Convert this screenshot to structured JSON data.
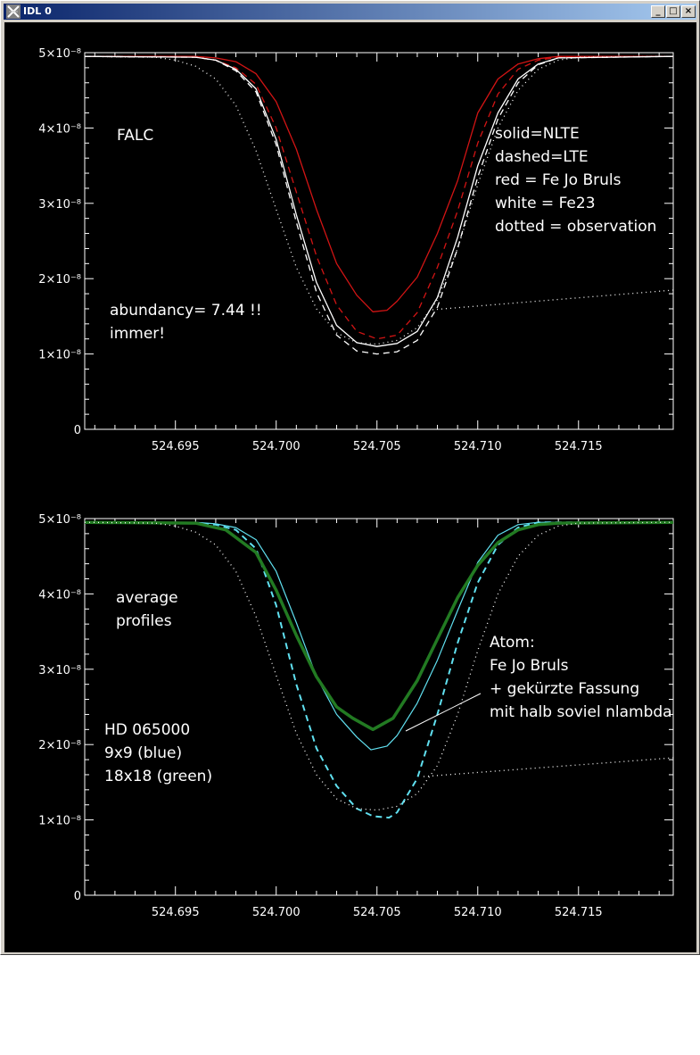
{
  "window": {
    "title": "IDL 0",
    "controls": [
      "minimize",
      "maximize",
      "close"
    ]
  },
  "colors": {
    "background": "#000000",
    "axis": "#ffffff",
    "red": "#d21414",
    "white": "#ffffff",
    "cyan": "#60e0f0",
    "green": "#227a22",
    "observation": "#ffffff"
  },
  "plots": {
    "top": {
      "legend_left": "FALC",
      "legend_right": [
        "solid=NLTE",
        "dashed=LTE",
        "red = Fe Jo Bruls",
        "white = Fe23",
        "dotted = observation"
      ],
      "note": [
        "abundancy= 7.44 !!",
        "immer!"
      ]
    },
    "bottom": {
      "legend_left": [
        "average",
        "profiles"
      ],
      "atom": [
        "Atom:",
        "Fe Jo Bruls",
        "+ gekürzte Fassung",
        "mit halb soviel nlambda"
      ],
      "star": [
        "HD 065000",
        "9x9 (blue)",
        "18x18 (green)"
      ]
    }
  },
  "chart_data": [
    {
      "type": "line",
      "title": "",
      "xlabel": "",
      "ylabel": "",
      "xlim": [
        524.6905,
        524.7197
      ],
      "ylim": [
        0,
        5e-08
      ],
      "xticks": [
        "524.695",
        "524.700",
        "524.705",
        "524.710",
        "524.715"
      ],
      "xtick_values": [
        524.695,
        524.7,
        524.705,
        524.71,
        524.715
      ],
      "yticks": [
        "0",
        "1x10^-8",
        "2x10^-8",
        "3x10^-8",
        "4x10^-8",
        "5x10^-8"
      ],
      "ytick_values": [
        0,
        1e-08,
        2e-08,
        3e-08,
        4e-08,
        5e-08
      ],
      "grid": false,
      "series": [
        {
          "color": "red",
          "style": "solid",
          "x": [
            524.6905,
            524.696,
            524.697,
            524.698,
            524.699,
            524.7,
            524.701,
            524.702,
            524.703,
            524.704,
            524.7048,
            524.7055,
            524.706,
            524.707,
            524.708,
            524.709,
            524.71,
            524.711,
            524.712,
            524.713,
            524.714,
            524.7197
          ],
          "y": [
            4.95e-08,
            4.95e-08,
            4.93e-08,
            4.88e-08,
            4.72e-08,
            4.35e-08,
            3.72e-08,
            2.92e-08,
            2.2e-08,
            1.78e-08,
            1.56e-08,
            1.58e-08,
            1.7e-08,
            2.02e-08,
            2.6e-08,
            3.3e-08,
            4.2e-08,
            4.65e-08,
            4.85e-08,
            4.92e-08,
            4.95e-08,
            4.95e-08
          ]
        },
        {
          "color": "red",
          "style": "dashed",
          "x": [
            524.6905,
            524.696,
            524.697,
            524.698,
            524.699,
            524.7,
            524.701,
            524.702,
            524.703,
            524.704,
            524.705,
            524.706,
            524.707,
            524.708,
            524.709,
            524.71,
            524.711,
            524.712,
            524.713,
            524.714,
            524.7197
          ],
          "y": [
            4.95e-08,
            4.94e-08,
            4.9e-08,
            4.8e-08,
            4.58e-08,
            4e-08,
            3.15e-08,
            2.3e-08,
            1.65e-08,
            1.3e-08,
            1.2e-08,
            1.25e-08,
            1.55e-08,
            2.15e-08,
            2.9e-08,
            3.8e-08,
            4.45e-08,
            4.78e-08,
            4.9e-08,
            4.94e-08,
            4.95e-08
          ]
        },
        {
          "color": "white",
          "style": "solid",
          "x": [
            524.6905,
            524.696,
            524.697,
            524.698,
            524.699,
            524.7,
            524.701,
            524.702,
            524.703,
            524.704,
            524.705,
            524.706,
            524.707,
            524.708,
            524.709,
            524.71,
            524.711,
            524.712,
            524.713,
            524.714,
            524.7197
          ],
          "y": [
            4.95e-08,
            4.94e-08,
            4.9e-08,
            4.78e-08,
            4.52e-08,
            3.85e-08,
            2.85e-08,
            1.95e-08,
            1.38e-08,
            1.15e-08,
            1.1e-08,
            1.14e-08,
            1.3e-08,
            1.75e-08,
            2.55e-08,
            3.5e-08,
            4.2e-08,
            4.65e-08,
            4.85e-08,
            4.93e-08,
            4.95e-08
          ]
        },
        {
          "color": "white",
          "style": "dashed",
          "x": [
            524.6905,
            524.696,
            524.697,
            524.698,
            524.699,
            524.7,
            524.701,
            524.702,
            524.703,
            524.704,
            524.705,
            524.706,
            524.707,
            524.708,
            524.709,
            524.71,
            524.711,
            524.712,
            524.713,
            524.714,
            524.7197
          ],
          "y": [
            4.95e-08,
            4.94e-08,
            4.9e-08,
            4.76e-08,
            4.48e-08,
            3.78e-08,
            2.75e-08,
            1.82e-08,
            1.25e-08,
            1.04e-08,
            1e-08,
            1.03e-08,
            1.18e-08,
            1.62e-08,
            2.4e-08,
            3.35e-08,
            4.12e-08,
            4.6e-08,
            4.84e-08,
            4.93e-08,
            4.95e-08
          ]
        },
        {
          "color": "observation",
          "style": "dotted",
          "x": [
            524.6905,
            524.694,
            524.695,
            524.696,
            524.697,
            524.698,
            524.699,
            524.7,
            524.701,
            524.702,
            524.703,
            524.704,
            524.705,
            524.706,
            524.707,
            524.708,
            524.709,
            524.71,
            524.711,
            524.712,
            524.713,
            524.714,
            524.715,
            524.7197
          ],
          "y": [
            4.95e-08,
            4.94e-08,
            4.9e-08,
            4.82e-08,
            4.65e-08,
            4.3e-08,
            3.7e-08,
            2.92e-08,
            2.15e-08,
            1.6e-08,
            1.28e-08,
            1.15e-08,
            1.13e-08,
            1.18e-08,
            1.35e-08,
            1.72e-08,
            2.4e-08,
            3.25e-08,
            4e-08,
            4.5e-08,
            4.78e-08,
            4.9e-08,
            4.94e-08,
            4.95e-08
          ]
        }
      ]
    },
    {
      "type": "line",
      "title": "",
      "xlabel": "",
      "ylabel": "",
      "xlim": [
        524.6905,
        524.7197
      ],
      "ylim": [
        0,
        5e-08
      ],
      "xticks": [
        "524.695",
        "524.700",
        "524.705",
        "524.710",
        "524.715"
      ],
      "xtick_values": [
        524.695,
        524.7,
        524.705,
        524.71,
        524.715
      ],
      "yticks": [
        "0",
        "1x10^-8",
        "2x10^-8",
        "3x10^-8",
        "4x10^-8",
        "5x10^-8"
      ],
      "ytick_values": [
        0,
        1e-08,
        2e-08,
        3e-08,
        4e-08,
        5e-08
      ],
      "grid": false,
      "series": [
        {
          "color": "cyan",
          "style": "solid",
          "width": 1.2,
          "x": [
            524.6905,
            524.696,
            524.697,
            524.698,
            524.699,
            524.7,
            524.701,
            524.702,
            524.703,
            524.704,
            524.7047,
            524.7055,
            524.706,
            524.707,
            524.708,
            524.709,
            524.71,
            524.711,
            524.712,
            524.713,
            524.7197
          ],
          "y": [
            4.95e-08,
            4.95e-08,
            4.93e-08,
            4.88e-08,
            4.72e-08,
            4.3e-08,
            3.62e-08,
            2.9e-08,
            2.4e-08,
            2.1e-08,
            1.93e-08,
            1.98e-08,
            2.12e-08,
            2.55e-08,
            3.12e-08,
            3.78e-08,
            4.42e-08,
            4.78e-08,
            4.92e-08,
            4.95e-08,
            4.95e-08
          ]
        },
        {
          "color": "cyan",
          "style": "dashed",
          "width": 2,
          "x": [
            524.6905,
            524.696,
            524.697,
            524.698,
            524.699,
            524.7,
            524.701,
            524.702,
            524.703,
            524.704,
            524.7048,
            524.7056,
            524.706,
            524.707,
            524.708,
            524.709,
            524.71,
            524.711,
            524.712,
            524.713,
            524.7197
          ],
          "y": [
            4.95e-08,
            4.94e-08,
            4.92e-08,
            4.85e-08,
            4.6e-08,
            3.85e-08,
            2.8e-08,
            1.95e-08,
            1.45e-08,
            1.15e-08,
            1.05e-08,
            1.03e-08,
            1.1e-08,
            1.55e-08,
            2.4e-08,
            3.35e-08,
            4.15e-08,
            4.65e-08,
            4.88e-08,
            4.95e-08,
            4.95e-08
          ]
        },
        {
          "color": "green",
          "style": "solid",
          "width": 3.5,
          "x": [
            524.6905,
            524.696,
            524.6975,
            524.699,
            524.7,
            524.701,
            524.702,
            524.703,
            524.7038,
            524.7048,
            524.7058,
            524.707,
            524.708,
            524.709,
            524.71,
            524.711,
            524.712,
            524.713,
            524.714,
            524.7197
          ],
          "y": [
            4.95e-08,
            4.94e-08,
            4.85e-08,
            4.55e-08,
            4.05e-08,
            3.45e-08,
            2.9e-08,
            2.5e-08,
            2.35e-08,
            2.2e-08,
            2.35e-08,
            2.85e-08,
            3.4e-08,
            3.95e-08,
            4.38e-08,
            4.68e-08,
            4.85e-08,
            4.92e-08,
            4.94e-08,
            4.95e-08
          ]
        },
        {
          "color": "observation",
          "style": "dotted",
          "x": [
            524.6905,
            524.694,
            524.695,
            524.696,
            524.697,
            524.698,
            524.699,
            524.7,
            524.701,
            524.702,
            524.703,
            524.704,
            524.705,
            524.706,
            524.707,
            524.708,
            524.709,
            524.71,
            524.711,
            524.712,
            524.713,
            524.714,
            524.715,
            524.7197
          ],
          "y": [
            4.95e-08,
            4.94e-08,
            4.9e-08,
            4.82e-08,
            4.65e-08,
            4.3e-08,
            3.7e-08,
            2.92e-08,
            2.15e-08,
            1.6e-08,
            1.28e-08,
            1.15e-08,
            1.13e-08,
            1.18e-08,
            1.35e-08,
            1.72e-08,
            2.4e-08,
            3.25e-08,
            4e-08,
            4.5e-08,
            4.78e-08,
            4.9e-08,
            4.94e-08,
            4.95e-08
          ]
        }
      ]
    }
  ]
}
